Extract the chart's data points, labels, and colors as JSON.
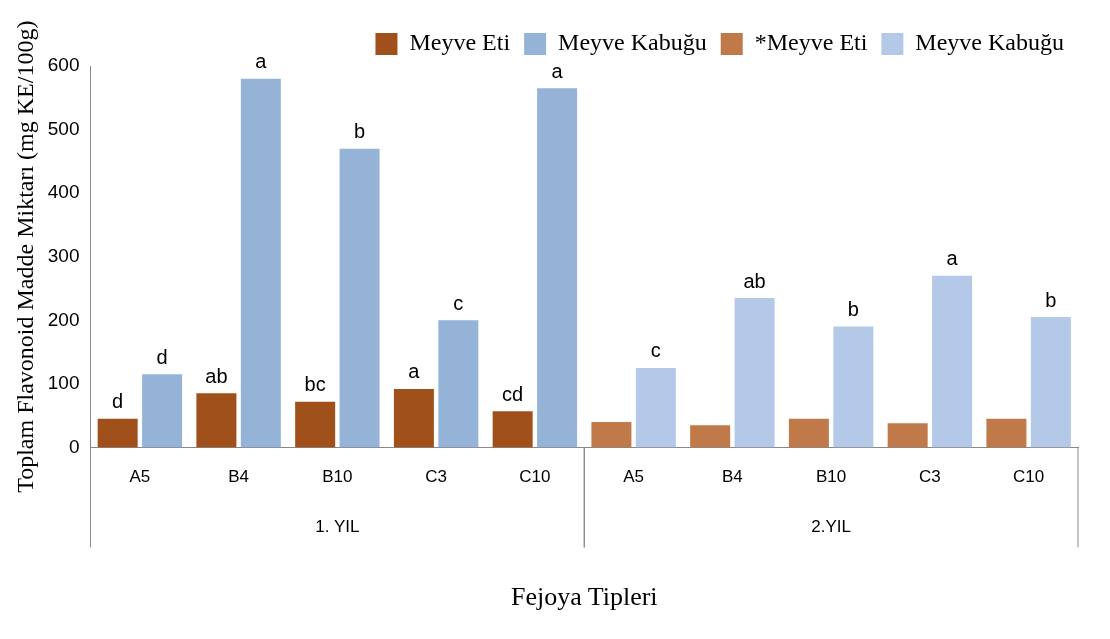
{
  "chart_data": {
    "type": "bar",
    "xlabel": "Fejoya Tipleri",
    "ylabel": "Toplam Flavonoid Madde Miktarı (mg KE/100g)",
    "categories": [
      "A5",
      "B4",
      "B10",
      "C3",
      "C10",
      "A5",
      "B4",
      "B10",
      "C3",
      "C10"
    ],
    "series": [
      {
        "name": "Meyve Eti",
        "color": "#a0501a",
        "values": [
          45,
          85,
          72,
          92,
          57,
          null,
          null,
          null,
          null,
          null
        ],
        "value_labels": [
          "d",
          "ab",
          "bc",
          "a",
          "cd",
          null,
          null,
          null,
          null,
          null
        ]
      },
      {
        "name": "Meyve Kabuğu",
        "color": "#95b3d7",
        "values": [
          115,
          580,
          470,
          200,
          565,
          null,
          null,
          null,
          null,
          null
        ],
        "value_labels": [
          "d",
          "a",
          "b",
          "c",
          "a",
          null,
          null,
          null,
          null,
          null
        ]
      },
      {
        "name": "*Meyve Eti",
        "color": "#c07a4a",
        "values": [
          null,
          null,
          null,
          null,
          null,
          40,
          35,
          45,
          38,
          45
        ]
      },
      {
        "name": "Meyve Kabuğu",
        "color": "#b4c8e8",
        "values": [
          null,
          null,
          null,
          null,
          null,
          125,
          235,
          190,
          270,
          205
        ],
        "value_labels": [
          null,
          null,
          null,
          null,
          null,
          "c",
          "ab",
          "b",
          "a",
          "b"
        ]
      }
    ],
    "annotations": [
      "1. YIL",
      "2.YIL"
    ],
    "ylim": [
      0,
      600
    ],
    "yticks": [
      0,
      100,
      200,
      300,
      400,
      500,
      600
    ],
    "grid": false,
    "legend": "top"
  }
}
